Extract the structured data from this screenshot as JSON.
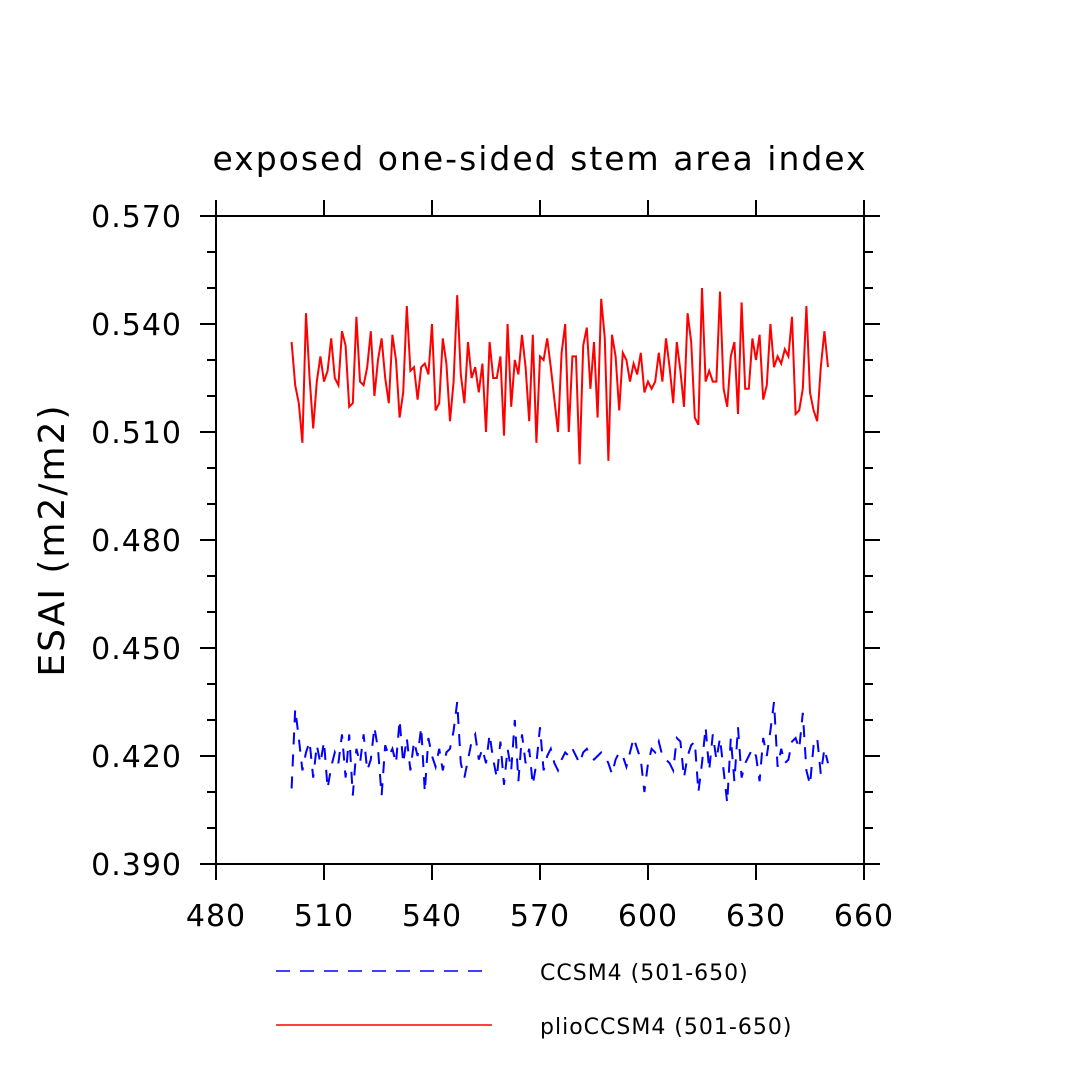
{
  "chart_data": {
    "type": "line",
    "title": "exposed one-sided stem area index",
    "xlabel": "",
    "ylabel": "ESAI  (m2/m2)",
    "xlim": [
      480,
      660
    ],
    "ylim": [
      0.39,
      0.57
    ],
    "x_ticks": [
      "480",
      "510",
      "540",
      "570",
      "600",
      "630",
      "660"
    ],
    "y_ticks": [
      "0.390",
      "0.420",
      "0.450",
      "0.480",
      "0.510",
      "0.540",
      "0.570"
    ],
    "legend_position": "bottom",
    "grid": false,
    "series": [
      {
        "name": "CCSM4 (501-650)",
        "color": "#0000ff",
        "style": "dashed",
        "x_start": 501,
        "x_end": 650,
        "values": [
          0.411,
          0.433,
          0.425,
          0.416,
          0.421,
          0.424,
          0.414,
          0.423,
          0.418,
          0.424,
          0.411,
          0.417,
          0.421,
          0.418,
          0.426,
          0.414,
          0.426,
          0.409,
          0.422,
          0.418,
          0.426,
          0.416,
          0.419,
          0.428,
          0.422,
          0.409,
          0.423,
          0.42,
          0.422,
          0.418,
          0.43,
          0.418,
          0.425,
          0.416,
          0.424,
          0.42,
          0.428,
          0.41,
          0.425,
          0.42,
          0.417,
          0.422,
          0.416,
          0.421,
          0.422,
          0.427,
          0.435,
          0.418,
          0.414,
          0.419,
          0.424,
          0.426,
          0.419,
          0.422,
          0.418,
          0.426,
          0.419,
          0.414,
          0.424,
          0.412,
          0.422,
          0.416,
          0.43,
          0.413,
          0.426,
          0.418,
          0.422,
          0.412,
          0.418,
          0.428,
          0.416,
          0.42,
          0.422,
          0.418,
          0.416,
          0.419,
          0.421,
          0.42,
          0.422,
          0.42,
          0.418,
          0.421,
          0.422,
          0.42,
          0.419,
          0.42,
          0.421,
          0.42,
          0.418,
          0.415,
          0.419,
          0.421,
          0.42,
          0.417,
          0.421,
          0.425,
          0.422,
          0.419,
          0.41,
          0.418,
          0.422,
          0.421,
          0.424,
          0.42,
          0.419,
          0.418,
          0.416,
          0.425,
          0.424,
          0.414,
          0.42,
          0.423,
          0.424,
          0.41,
          0.418,
          0.428,
          0.416,
          0.426,
          0.419,
          0.425,
          0.416,
          0.407,
          0.425,
          0.413,
          0.428,
          0.414,
          0.418,
          0.42,
          0.422,
          0.42,
          0.413,
          0.425,
          0.42,
          0.427,
          0.435,
          0.417,
          0.422,
          0.418,
          0.419,
          0.424,
          0.425,
          0.422,
          0.432,
          0.416,
          0.412,
          0.423,
          0.425,
          0.415,
          0.422,
          0.418
        ]
      },
      {
        "name": "plioCCSM4 (501-650)",
        "color": "#ff0000",
        "style": "solid",
        "x_start": 501,
        "x_end": 650,
        "values": [
          0.535,
          0.523,
          0.518,
          0.507,
          0.543,
          0.525,
          0.511,
          0.524,
          0.531,
          0.524,
          0.527,
          0.536,
          0.525,
          0.523,
          0.538,
          0.534,
          0.517,
          0.518,
          0.542,
          0.524,
          0.523,
          0.528,
          0.538,
          0.52,
          0.53,
          0.536,
          0.525,
          0.518,
          0.537,
          0.53,
          0.514,
          0.521,
          0.545,
          0.527,
          0.528,
          0.519,
          0.528,
          0.529,
          0.526,
          0.54,
          0.516,
          0.518,
          0.536,
          0.529,
          0.513,
          0.524,
          0.548,
          0.526,
          0.518,
          0.535,
          0.525,
          0.528,
          0.521,
          0.529,
          0.51,
          0.535,
          0.525,
          0.525,
          0.531,
          0.509,
          0.54,
          0.517,
          0.53,
          0.526,
          0.537,
          0.528,
          0.513,
          0.537,
          0.507,
          0.531,
          0.53,
          0.536,
          0.528,
          0.519,
          0.51,
          0.532,
          0.54,
          0.51,
          0.531,
          0.531,
          0.501,
          0.534,
          0.539,
          0.522,
          0.535,
          0.514,
          0.547,
          0.536,
          0.502,
          0.537,
          0.531,
          0.516,
          0.532,
          0.53,
          0.524,
          0.529,
          0.526,
          0.532,
          0.521,
          0.524,
          0.522,
          0.524,
          0.532,
          0.524,
          0.536,
          0.528,
          0.518,
          0.535,
          0.527,
          0.517,
          0.543,
          0.535,
          0.514,
          0.512,
          0.55,
          0.524,
          0.527,
          0.524,
          0.524,
          0.549,
          0.522,
          0.517,
          0.531,
          0.535,
          0.515,
          0.546,
          0.522,
          0.522,
          0.536,
          0.53,
          0.537,
          0.519,
          0.523,
          0.54,
          0.528,
          0.531,
          0.529,
          0.533,
          0.531,
          0.542,
          0.515,
          0.516,
          0.522,
          0.545,
          0.521,
          0.516,
          0.513,
          0.528,
          0.538,
          0.528
        ]
      }
    ]
  }
}
